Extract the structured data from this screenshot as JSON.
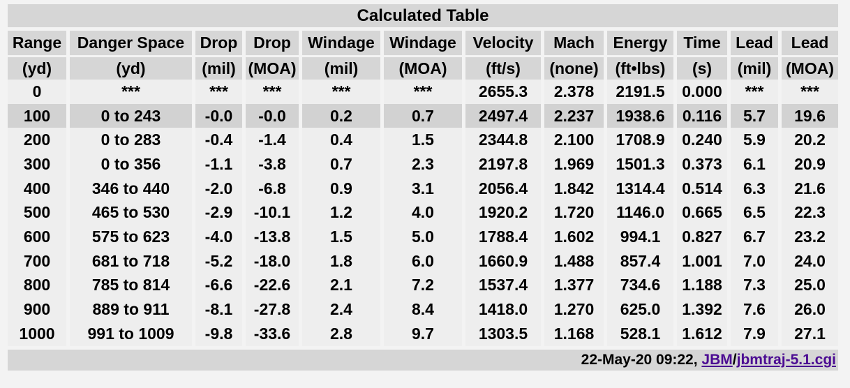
{
  "title": "Calculated Table",
  "columns": [
    {
      "name": "Range",
      "unit": "(yd)"
    },
    {
      "name": "Danger Space",
      "unit": "(yd)"
    },
    {
      "name": "Drop",
      "unit": "(mil)"
    },
    {
      "name": "Drop",
      "unit": "(MOA)"
    },
    {
      "name": "Windage",
      "unit": "(mil)"
    },
    {
      "name": "Windage",
      "unit": "(MOA)"
    },
    {
      "name": "Velocity",
      "unit": "(ft/s)"
    },
    {
      "name": "Mach",
      "unit": "(none)"
    },
    {
      "name": "Energy",
      "unit": "(ft•lbs)"
    },
    {
      "name": "Time",
      "unit": "(s)"
    },
    {
      "name": "Lead",
      "unit": "(mil)"
    },
    {
      "name": "Lead",
      "unit": "(MOA)"
    }
  ],
  "rows": [
    [
      "0",
      "***",
      "***",
      "***",
      "***",
      "***",
      "2655.3",
      "2.378",
      "2191.5",
      "0.000",
      "***",
      "***"
    ],
    [
      "100",
      "0 to 243",
      "-0.0",
      "-0.0",
      "0.2",
      "0.7",
      "2497.4",
      "2.237",
      "1938.6",
      "0.116",
      "5.7",
      "19.6"
    ],
    [
      "200",
      "0 to 283",
      "-0.4",
      "-1.4",
      "0.4",
      "1.5",
      "2344.8",
      "2.100",
      "1708.9",
      "0.240",
      "5.9",
      "20.2"
    ],
    [
      "300",
      "0 to 356",
      "-1.1",
      "-3.8",
      "0.7",
      "2.3",
      "2197.8",
      "1.969",
      "1501.3",
      "0.373",
      "6.1",
      "20.9"
    ],
    [
      "400",
      "346 to 440",
      "-2.0",
      "-6.8",
      "0.9",
      "3.1",
      "2056.4",
      "1.842",
      "1314.4",
      "0.514",
      "6.3",
      "21.6"
    ],
    [
      "500",
      "465 to 530",
      "-2.9",
      "-10.1",
      "1.2",
      "4.0",
      "1920.2",
      "1.720",
      "1146.0",
      "0.665",
      "6.5",
      "22.3"
    ],
    [
      "600",
      "575 to 623",
      "-4.0",
      "-13.8",
      "1.5",
      "5.0",
      "1788.4",
      "1.602",
      "994.1",
      "0.827",
      "6.7",
      "23.2"
    ],
    [
      "700",
      "681 to 718",
      "-5.2",
      "-18.0",
      "1.8",
      "6.0",
      "1660.9",
      "1.488",
      "857.4",
      "1.001",
      "7.0",
      "24.0"
    ],
    [
      "800",
      "785 to 814",
      "-6.6",
      "-22.6",
      "2.1",
      "7.2",
      "1537.4",
      "1.377",
      "734.6",
      "1.188",
      "7.3",
      "25.0"
    ],
    [
      "900",
      "889 to 911",
      "-8.1",
      "-27.8",
      "2.4",
      "8.4",
      "1418.0",
      "1.270",
      "625.0",
      "1.392",
      "7.6",
      "26.0"
    ],
    [
      "1000",
      "991 to 1009",
      "-9.8",
      "-33.6",
      "2.8",
      "9.7",
      "1303.5",
      "1.168",
      "528.1",
      "1.612",
      "7.9",
      "27.1"
    ]
  ],
  "highlighted_row_index": 1,
  "footer": {
    "timestamp": "22-May-20 09:22, ",
    "link1": "JBM",
    "separator": "/",
    "link2": "jbmtraj-5.1.cgi"
  },
  "colors": {
    "header_bg": "#d6d6d6",
    "row_bg": "#eeeeee",
    "highlight_bg": "#d2d2d2",
    "link": "#4b0b92"
  }
}
